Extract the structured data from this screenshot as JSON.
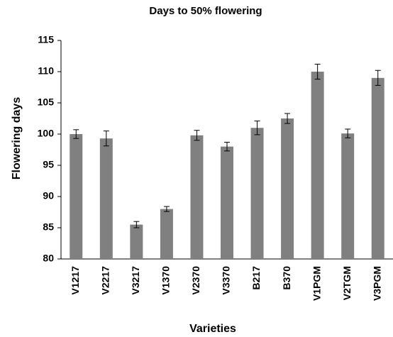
{
  "chart_data": {
    "type": "bar",
    "title": "Days to 50% flowering",
    "x_label": "Varieties",
    "y_label": "Flowering days",
    "categories": [
      "V1217",
      "V2217",
      "V3217",
      "V1370",
      "V2370",
      "V3370",
      "B217",
      "B370",
      "V1PGM",
      "V2TGM",
      "V3PGM"
    ],
    "values": [
      100,
      99.3,
      85.5,
      88,
      99.8,
      98,
      101,
      102.5,
      110,
      100.1,
      109
    ],
    "errors": [
      0.7,
      1.2,
      0.5,
      0.4,
      0.8,
      0.7,
      1.1,
      0.8,
      1.2,
      0.7,
      1.2
    ],
    "color": "#808080",
    "ylim": [
      80,
      115
    ],
    "yticks": [
      80,
      85,
      90,
      95,
      100,
      105,
      110,
      115
    ],
    "grid": false
  }
}
